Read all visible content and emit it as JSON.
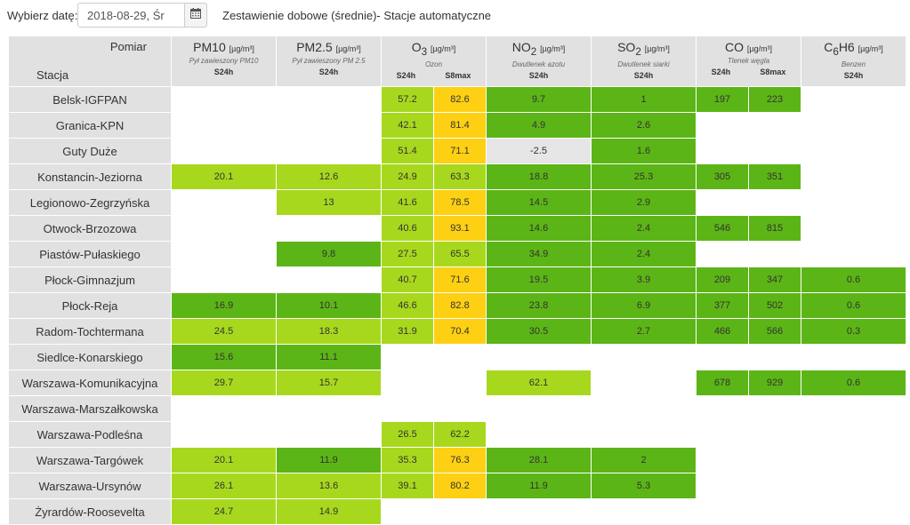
{
  "header": {
    "date_label": "Wybierz datę:",
    "date_value": "2018-08-29, Śr",
    "calendar_icon": "calendar-icon",
    "title": "Zestawienie dobowe (średnie)- Stacje automatyczne"
  },
  "table": {
    "corner_top": "Pomiar",
    "corner_bottom": "Stacja",
    "pollutants": [
      {
        "pre": "PM10",
        "sub": "",
        "post": "",
        "unit": "[µg/m³]",
        "desc": "Pył zawieszony PM10",
        "cols": [
          "S24h"
        ]
      },
      {
        "pre": "PM2.5",
        "sub": "",
        "post": "",
        "unit": "[µg/m³]",
        "desc": "Pył zawieszony PM 2.5",
        "cols": [
          "S24h"
        ]
      },
      {
        "pre": "O",
        "sub": "3",
        "post": "",
        "unit": "[µg/m³]",
        "desc": "Ozon",
        "cols": [
          "S24h",
          "S8max"
        ]
      },
      {
        "pre": "NO",
        "sub": "2",
        "post": "",
        "unit": "[µg/m³]",
        "desc": "Dwutlenek azotu",
        "cols": [
          "S24h"
        ]
      },
      {
        "pre": "SO",
        "sub": "2",
        "post": "",
        "unit": "[µg/m³]",
        "desc": "Dwutlenek siarki",
        "cols": [
          "S24h"
        ]
      },
      {
        "pre": "CO",
        "sub": "",
        "post": "",
        "unit": "[µg/m³]",
        "desc": "Tlenek węgla",
        "cols": [
          "S24h",
          "S8max"
        ]
      },
      {
        "pre": "C",
        "sub": "6",
        "post": "H6",
        "unit": "[µg/m³]",
        "desc": "Benzen",
        "cols": [
          "S24h"
        ]
      }
    ],
    "rows": [
      {
        "station": "Belsk-IGFPAN",
        "cells": [
          {
            "v": "",
            "c": ""
          },
          {
            "v": "",
            "c": ""
          },
          {
            "v": "57.2",
            "c": "vg"
          },
          {
            "v": "82.6",
            "c": "y"
          },
          {
            "v": "9.7",
            "c": "g"
          },
          {
            "v": "1",
            "c": "g"
          },
          {
            "v": "197",
            "c": "g"
          },
          {
            "v": "223",
            "c": "g"
          },
          {
            "v": "",
            "c": ""
          }
        ]
      },
      {
        "station": "Granica-KPN",
        "cells": [
          {
            "v": "",
            "c": ""
          },
          {
            "v": "",
            "c": ""
          },
          {
            "v": "42.1",
            "c": "vg"
          },
          {
            "v": "81.4",
            "c": "y"
          },
          {
            "v": "4.9",
            "c": "g"
          },
          {
            "v": "2.6",
            "c": "g"
          },
          {
            "v": "",
            "c": ""
          },
          {
            "v": "",
            "c": ""
          },
          {
            "v": "",
            "c": ""
          }
        ]
      },
      {
        "station": "Guty Duże",
        "cells": [
          {
            "v": "",
            "c": ""
          },
          {
            "v": "",
            "c": ""
          },
          {
            "v": "51.4",
            "c": "vg"
          },
          {
            "v": "71.1",
            "c": "y"
          },
          {
            "v": "-2.5",
            "c": "gray"
          },
          {
            "v": "1.6",
            "c": "g"
          },
          {
            "v": "",
            "c": ""
          },
          {
            "v": "",
            "c": ""
          },
          {
            "v": "",
            "c": ""
          }
        ]
      },
      {
        "station": "Konstancin-Jeziorna",
        "cells": [
          {
            "v": "20.1",
            "c": "vg"
          },
          {
            "v": "12.6",
            "c": "vg"
          },
          {
            "v": "24.9",
            "c": "vg"
          },
          {
            "v": "63.3",
            "c": "vg"
          },
          {
            "v": "18.8",
            "c": "g"
          },
          {
            "v": "25.3",
            "c": "g"
          },
          {
            "v": "305",
            "c": "g"
          },
          {
            "v": "351",
            "c": "g"
          },
          {
            "v": "",
            "c": ""
          }
        ]
      },
      {
        "station": "Legionowo-Zegrzyńska",
        "cells": [
          {
            "v": "",
            "c": ""
          },
          {
            "v": "13",
            "c": "vg"
          },
          {
            "v": "41.6",
            "c": "vg"
          },
          {
            "v": "78.5",
            "c": "y"
          },
          {
            "v": "14.5",
            "c": "g"
          },
          {
            "v": "2.9",
            "c": "g"
          },
          {
            "v": "",
            "c": ""
          },
          {
            "v": "",
            "c": ""
          },
          {
            "v": "",
            "c": ""
          }
        ]
      },
      {
        "station": "Otwock-Brzozowa",
        "cells": [
          {
            "v": "",
            "c": ""
          },
          {
            "v": "",
            "c": ""
          },
          {
            "v": "40.6",
            "c": "vg"
          },
          {
            "v": "93.1",
            "c": "y"
          },
          {
            "v": "14.6",
            "c": "g"
          },
          {
            "v": "2.4",
            "c": "g"
          },
          {
            "v": "546",
            "c": "g"
          },
          {
            "v": "815",
            "c": "g"
          },
          {
            "v": "",
            "c": ""
          }
        ]
      },
      {
        "station": "Piastów-Pułaskiego",
        "cells": [
          {
            "v": "",
            "c": ""
          },
          {
            "v": "9.8",
            "c": "g"
          },
          {
            "v": "27.5",
            "c": "vg"
          },
          {
            "v": "65.5",
            "c": "vg"
          },
          {
            "v": "34.9",
            "c": "g"
          },
          {
            "v": "2.4",
            "c": "g"
          },
          {
            "v": "",
            "c": ""
          },
          {
            "v": "",
            "c": ""
          },
          {
            "v": "",
            "c": ""
          }
        ]
      },
      {
        "station": "Płock-Gimnazjum",
        "cells": [
          {
            "v": "",
            "c": ""
          },
          {
            "v": "",
            "c": ""
          },
          {
            "v": "40.7",
            "c": "vg"
          },
          {
            "v": "71.6",
            "c": "y"
          },
          {
            "v": "19.5",
            "c": "g"
          },
          {
            "v": "3.9",
            "c": "g"
          },
          {
            "v": "209",
            "c": "g"
          },
          {
            "v": "347",
            "c": "g"
          },
          {
            "v": "0.6",
            "c": "g"
          }
        ]
      },
      {
        "station": "Płock-Reja",
        "cells": [
          {
            "v": "16.9",
            "c": "g"
          },
          {
            "v": "10.1",
            "c": "g"
          },
          {
            "v": "46.6",
            "c": "vg"
          },
          {
            "v": "82.8",
            "c": "y"
          },
          {
            "v": "23.8",
            "c": "g"
          },
          {
            "v": "6.9",
            "c": "g"
          },
          {
            "v": "377",
            "c": "g"
          },
          {
            "v": "502",
            "c": "g"
          },
          {
            "v": "0.6",
            "c": "g"
          }
        ]
      },
      {
        "station": "Radom-Tochtermana",
        "cells": [
          {
            "v": "24.5",
            "c": "vg"
          },
          {
            "v": "18.3",
            "c": "vg"
          },
          {
            "v": "31.9",
            "c": "vg"
          },
          {
            "v": "70.4",
            "c": "y"
          },
          {
            "v": "30.5",
            "c": "g"
          },
          {
            "v": "2.7",
            "c": "g"
          },
          {
            "v": "466",
            "c": "g"
          },
          {
            "v": "566",
            "c": "g"
          },
          {
            "v": "0.3",
            "c": "g"
          }
        ]
      },
      {
        "station": "Siedlce-Konarskiego",
        "cells": [
          {
            "v": "15.6",
            "c": "g"
          },
          {
            "v": "11.1",
            "c": "g"
          },
          {
            "v": "",
            "c": ""
          },
          {
            "v": "",
            "c": ""
          },
          {
            "v": "",
            "c": ""
          },
          {
            "v": "",
            "c": ""
          },
          {
            "v": "",
            "c": ""
          },
          {
            "v": "",
            "c": ""
          },
          {
            "v": "",
            "c": ""
          }
        ]
      },
      {
        "station": "Warszawa-Komunikacyjna",
        "cells": [
          {
            "v": "29.7",
            "c": "vg"
          },
          {
            "v": "15.7",
            "c": "vg"
          },
          {
            "v": "",
            "c": ""
          },
          {
            "v": "",
            "c": ""
          },
          {
            "v": "62.1",
            "c": "vg"
          },
          {
            "v": "",
            "c": ""
          },
          {
            "v": "678",
            "c": "g"
          },
          {
            "v": "929",
            "c": "g"
          },
          {
            "v": "0.6",
            "c": "g"
          }
        ]
      },
      {
        "station": "Warszawa-Marszałkowska",
        "cells": [
          {
            "v": "",
            "c": ""
          },
          {
            "v": "",
            "c": ""
          },
          {
            "v": "",
            "c": ""
          },
          {
            "v": "",
            "c": ""
          },
          {
            "v": "",
            "c": ""
          },
          {
            "v": "",
            "c": ""
          },
          {
            "v": "",
            "c": ""
          },
          {
            "v": "",
            "c": ""
          },
          {
            "v": "",
            "c": ""
          }
        ]
      },
      {
        "station": "Warszawa-Podleśna",
        "cells": [
          {
            "v": "",
            "c": ""
          },
          {
            "v": "",
            "c": ""
          },
          {
            "v": "26.5",
            "c": "vg"
          },
          {
            "v": "62.2",
            "c": "vg"
          },
          {
            "v": "",
            "c": ""
          },
          {
            "v": "",
            "c": ""
          },
          {
            "v": "",
            "c": ""
          },
          {
            "v": "",
            "c": ""
          },
          {
            "v": "",
            "c": ""
          }
        ]
      },
      {
        "station": "Warszawa-Targówek",
        "cells": [
          {
            "v": "20.1",
            "c": "vg"
          },
          {
            "v": "11.9",
            "c": "g"
          },
          {
            "v": "35.3",
            "c": "vg"
          },
          {
            "v": "76.3",
            "c": "y"
          },
          {
            "v": "28.1",
            "c": "g"
          },
          {
            "v": "2",
            "c": "g"
          },
          {
            "v": "",
            "c": ""
          },
          {
            "v": "",
            "c": ""
          },
          {
            "v": "",
            "c": ""
          }
        ]
      },
      {
        "station": "Warszawa-Ursynów",
        "cells": [
          {
            "v": "26.1",
            "c": "vg"
          },
          {
            "v": "13.6",
            "c": "vg"
          },
          {
            "v": "39.1",
            "c": "vg"
          },
          {
            "v": "80.2",
            "c": "y"
          },
          {
            "v": "11.9",
            "c": "g"
          },
          {
            "v": "5.3",
            "c": "g"
          },
          {
            "v": "",
            "c": ""
          },
          {
            "v": "",
            "c": ""
          },
          {
            "v": "",
            "c": ""
          }
        ]
      },
      {
        "station": "Żyrardów-Roosevelta",
        "cells": [
          {
            "v": "24.7",
            "c": "vg"
          },
          {
            "v": "14.9",
            "c": "vg"
          },
          {
            "v": "",
            "c": ""
          },
          {
            "v": "",
            "c": ""
          },
          {
            "v": "",
            "c": ""
          },
          {
            "v": "",
            "c": ""
          },
          {
            "v": "",
            "c": ""
          },
          {
            "v": "",
            "c": ""
          },
          {
            "v": "",
            "c": ""
          }
        ]
      }
    ]
  },
  "colors": {
    "light_green": "#a8d81e",
    "green": "#5cb516",
    "yellow": "#fdd013",
    "gray": "#e6e6e6",
    "header_bg": "#e1e1e1"
  }
}
